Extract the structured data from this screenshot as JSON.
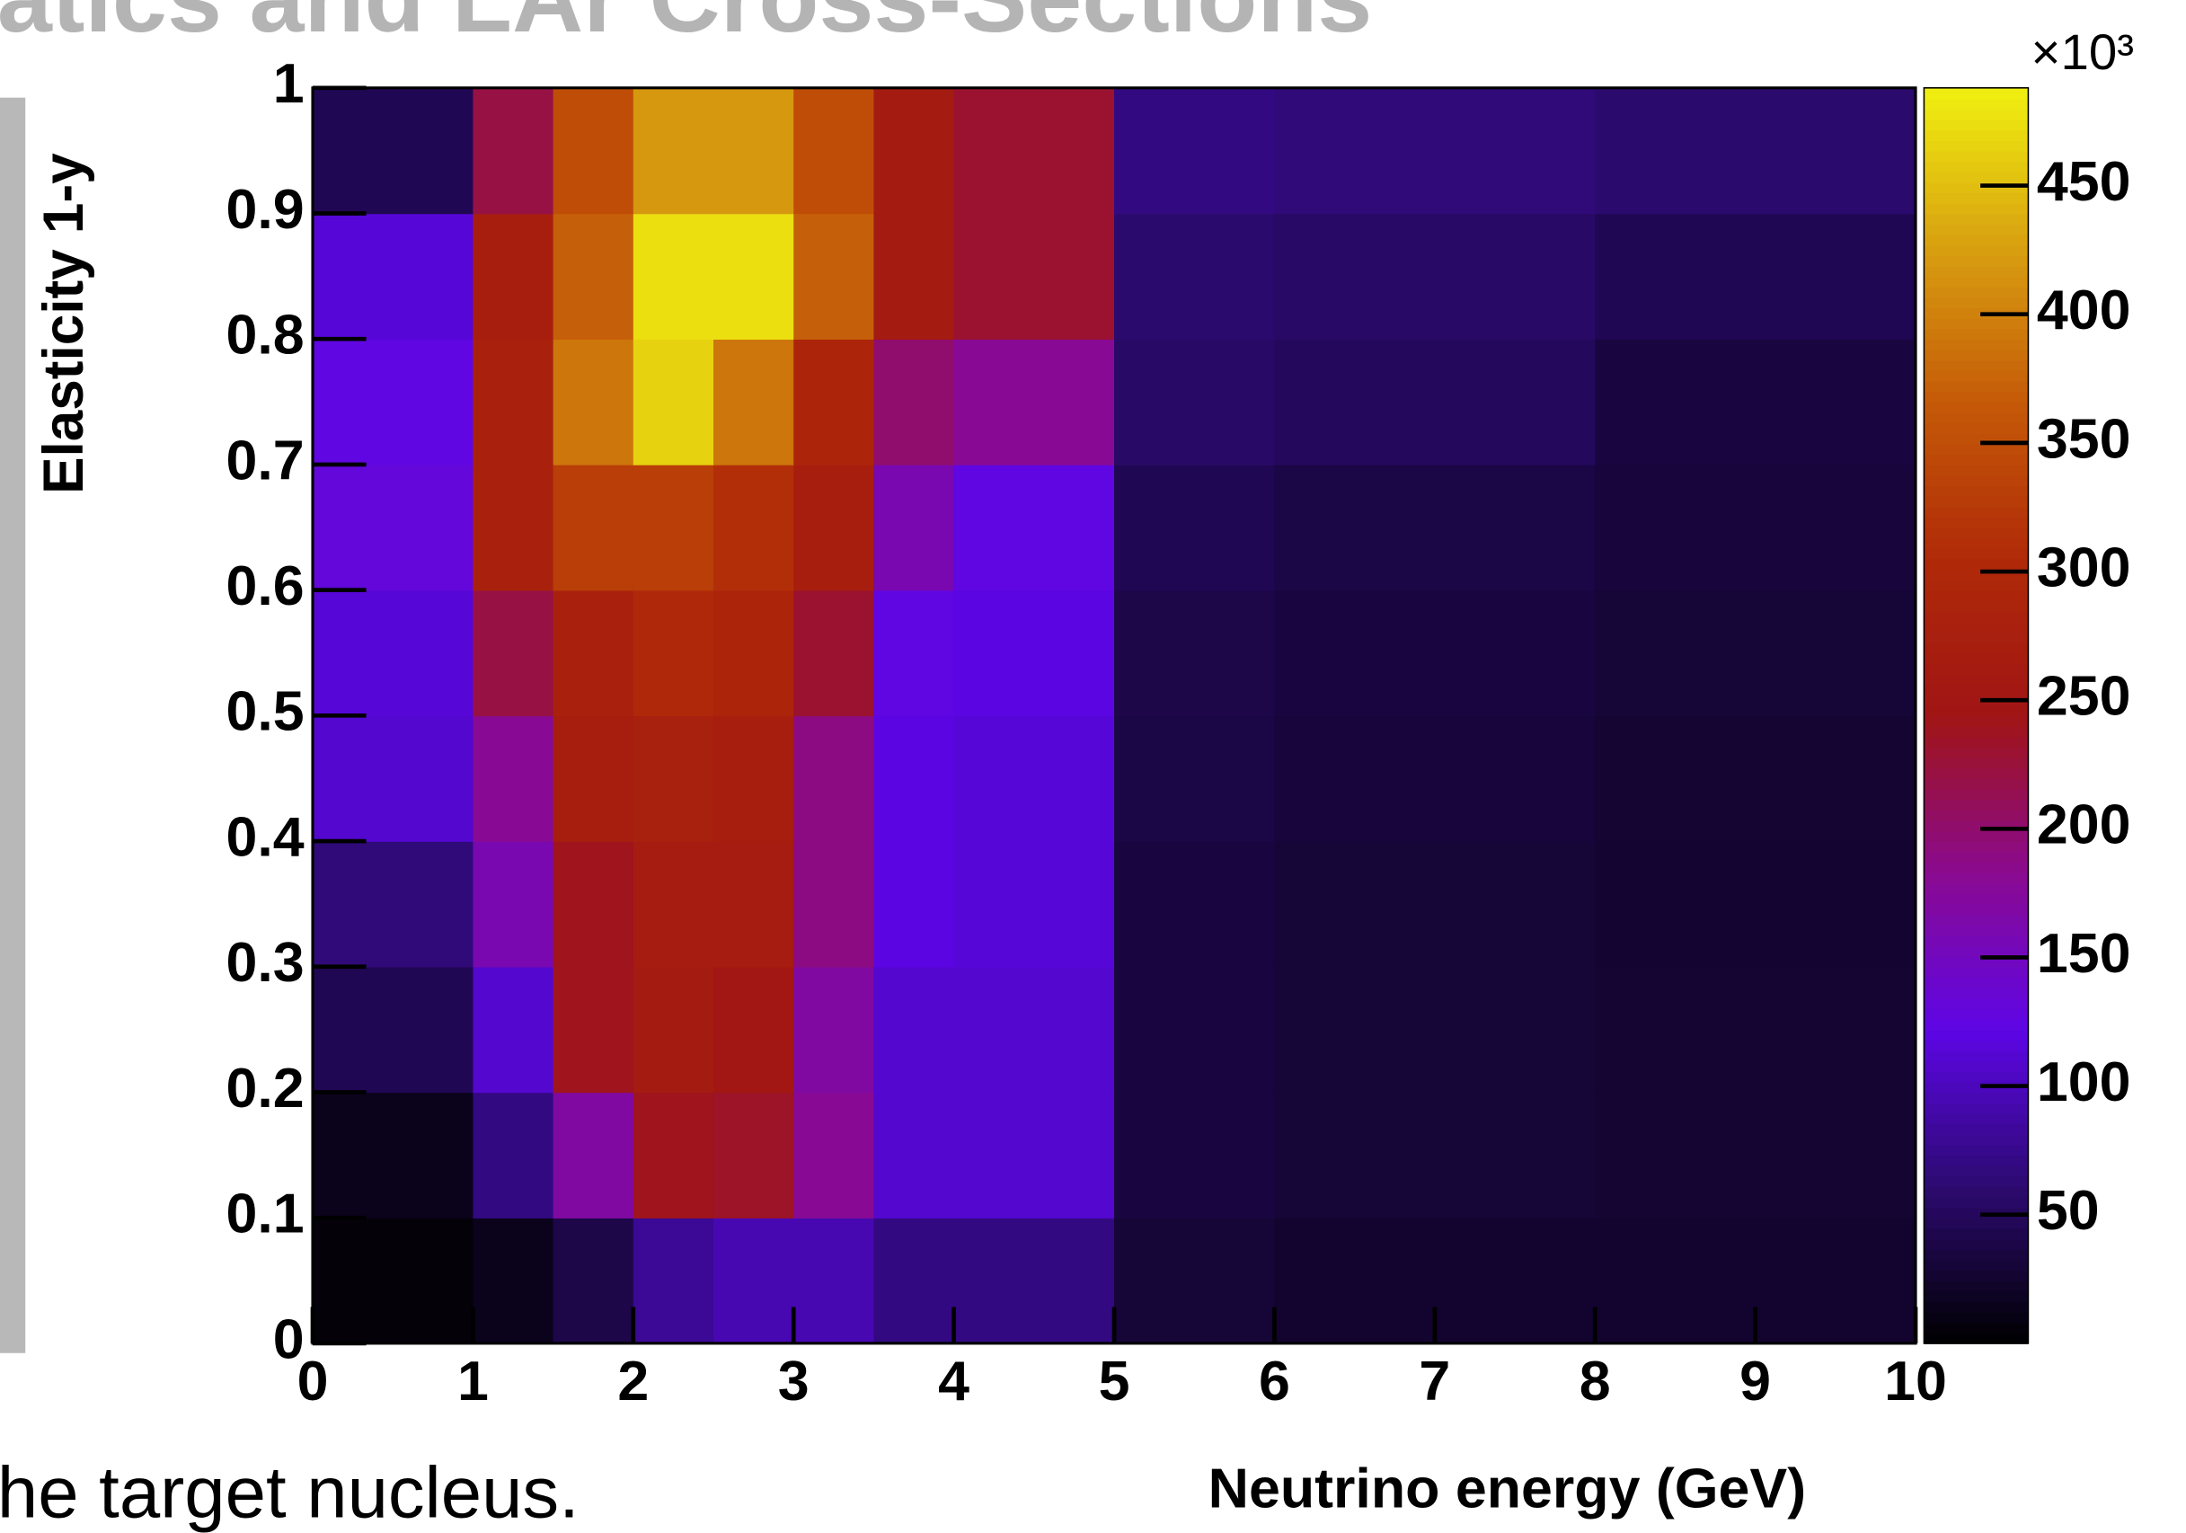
{
  "slide": {
    "title": "atics and LAr Cross-Sections",
    "body": "he target nucleus."
  },
  "chart_data": {
    "type": "heatmap",
    "x_label": "Neutrino energy (GeV)",
    "y_label": "Elasticity 1-y",
    "z_multiplier": "×10³",
    "x_bins": [
      0,
      1,
      1.5,
      2,
      2.5,
      3,
      3.5,
      4,
      5,
      6,
      8,
      10
    ],
    "y_bins": [
      0,
      0.1,
      0.2,
      0.3,
      0.4,
      0.5,
      0.6,
      0.7,
      0.8,
      0.9,
      1
    ],
    "values": [
      [
        5,
        15,
        40,
        80,
        95,
        95,
        70,
        70,
        30,
        25,
        25
      ],
      [
        15,
        70,
        170,
        240,
        235,
        180,
        110,
        110,
        35,
        30,
        28
      ],
      [
        45,
        110,
        240,
        260,
        250,
        170,
        110,
        110,
        35,
        30,
        28
      ],
      [
        65,
        160,
        240,
        265,
        265,
        190,
        120,
        115,
        35,
        30,
        27
      ],
      [
        110,
        180,
        270,
        275,
        270,
        190,
        120,
        115,
        38,
        32,
        28
      ],
      [
        115,
        220,
        280,
        300,
        290,
        230,
        125,
        120,
        40,
        35,
        30
      ],
      [
        130,
        280,
        330,
        330,
        310,
        270,
        160,
        125,
        45,
        38,
        32
      ],
      [
        125,
        280,
        390,
        465,
        390,
        290,
        200,
        180,
        55,
        50,
        35
      ],
      [
        115,
        270,
        370,
        475,
        475,
        370,
        260,
        230,
        60,
        55,
        45
      ],
      [
        45,
        220,
        350,
        420,
        420,
        350,
        260,
        230,
        70,
        65,
        60
      ]
    ],
    "xlim": [
      0,
      10
    ],
    "ylim": [
      0,
      1
    ],
    "zlim": [
      0,
      488
    ],
    "xticks": [
      0,
      1,
      2,
      3,
      4,
      5,
      6,
      7,
      8,
      9,
      10
    ],
    "yticks": [
      0,
      0.1,
      0.2,
      0.3,
      0.4,
      0.5,
      0.6,
      0.7,
      0.8,
      0.9,
      1
    ],
    "zticks": [
      50,
      100,
      150,
      200,
      250,
      300,
      350,
      400,
      450
    ],
    "colormap": [
      "#000000",
      "#2c0a70",
      "#5d06e6",
      "#8a0a90",
      "#a01515",
      "#b02a08",
      "#c55a08",
      "#d8a010",
      "#f0f010"
    ]
  }
}
